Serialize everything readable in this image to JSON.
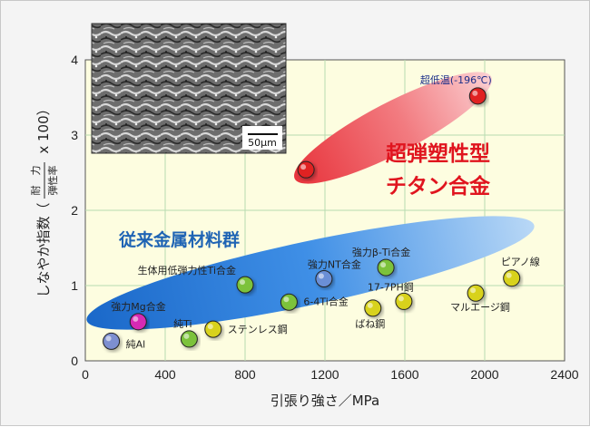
{
  "chart_data": {
    "type": "scatter",
    "xlabel": "引張り強さ／MPa",
    "ylabel_main": "しなやか指数（",
    "ylabel_frac_top": "耐　力",
    "ylabel_frac_bottom": "弾性率",
    "ylabel_suffix": "x 100）",
    "xlim": [
      0,
      2400
    ],
    "ylim": [
      0,
      4
    ],
    "xticks": [
      "0",
      "400",
      "800",
      "1200",
      "1600",
      "2000",
      "2400"
    ],
    "yticks": [
      "0",
      "1",
      "2",
      "3",
      "4"
    ],
    "grid": true,
    "groups": [
      {
        "name": "従来金属材料群",
        "color": "#1f78d2"
      },
      {
        "name": "超弾塑性型チタン合金",
        "line1": "超弾塑性型",
        "line2": "チタン合金",
        "color": "#e0141e"
      }
    ],
    "points": [
      {
        "label": "純Al",
        "x": 130,
        "y": 0.26,
        "color": "#7d8fd0"
      },
      {
        "label": "強力Mg合金",
        "x": 265,
        "y": 0.52,
        "color": "#d62ab4"
      },
      {
        "label": "純Ti",
        "x": 520,
        "y": 0.29,
        "color": "#7cc23a"
      },
      {
        "label": "ステンレス鋼",
        "x": 640,
        "y": 0.42,
        "color": "#d8d21a"
      },
      {
        "label": "生体用低弾力性Ti合金",
        "x": 800,
        "y": 1.01,
        "color": "#7cc23a"
      },
      {
        "label": "6-4Ti合金",
        "x": 1020,
        "y": 0.78,
        "color": "#7cc23a"
      },
      {
        "label": "強力NT合金",
        "x": 1195,
        "y": 1.09,
        "color": "#6b8fd6"
      },
      {
        "label": "ばね鋼",
        "x": 1440,
        "y": 0.7,
        "color": "#d8d21a"
      },
      {
        "label": "強力β-Ti合金",
        "x": 1505,
        "y": 1.24,
        "color": "#7cc23a"
      },
      {
        "label": "17-7PH鋼",
        "x": 1595,
        "y": 0.79,
        "color": "#d8d21a"
      },
      {
        "label": "マルエージ鋼",
        "x": 1955,
        "y": 0.9,
        "color": "#d8d21a"
      },
      {
        "label": "ピアノ線",
        "x": 2135,
        "y": 1.1,
        "color": "#d8d21a"
      },
      {
        "label": "",
        "x": 1105,
        "y": 2.54,
        "color": "#e02020"
      },
      {
        "label": "超低温(-196℃)",
        "x": 1965,
        "y": 3.52,
        "color": "#e02020"
      }
    ]
  },
  "inset": {
    "scale_label": "50μm"
  }
}
